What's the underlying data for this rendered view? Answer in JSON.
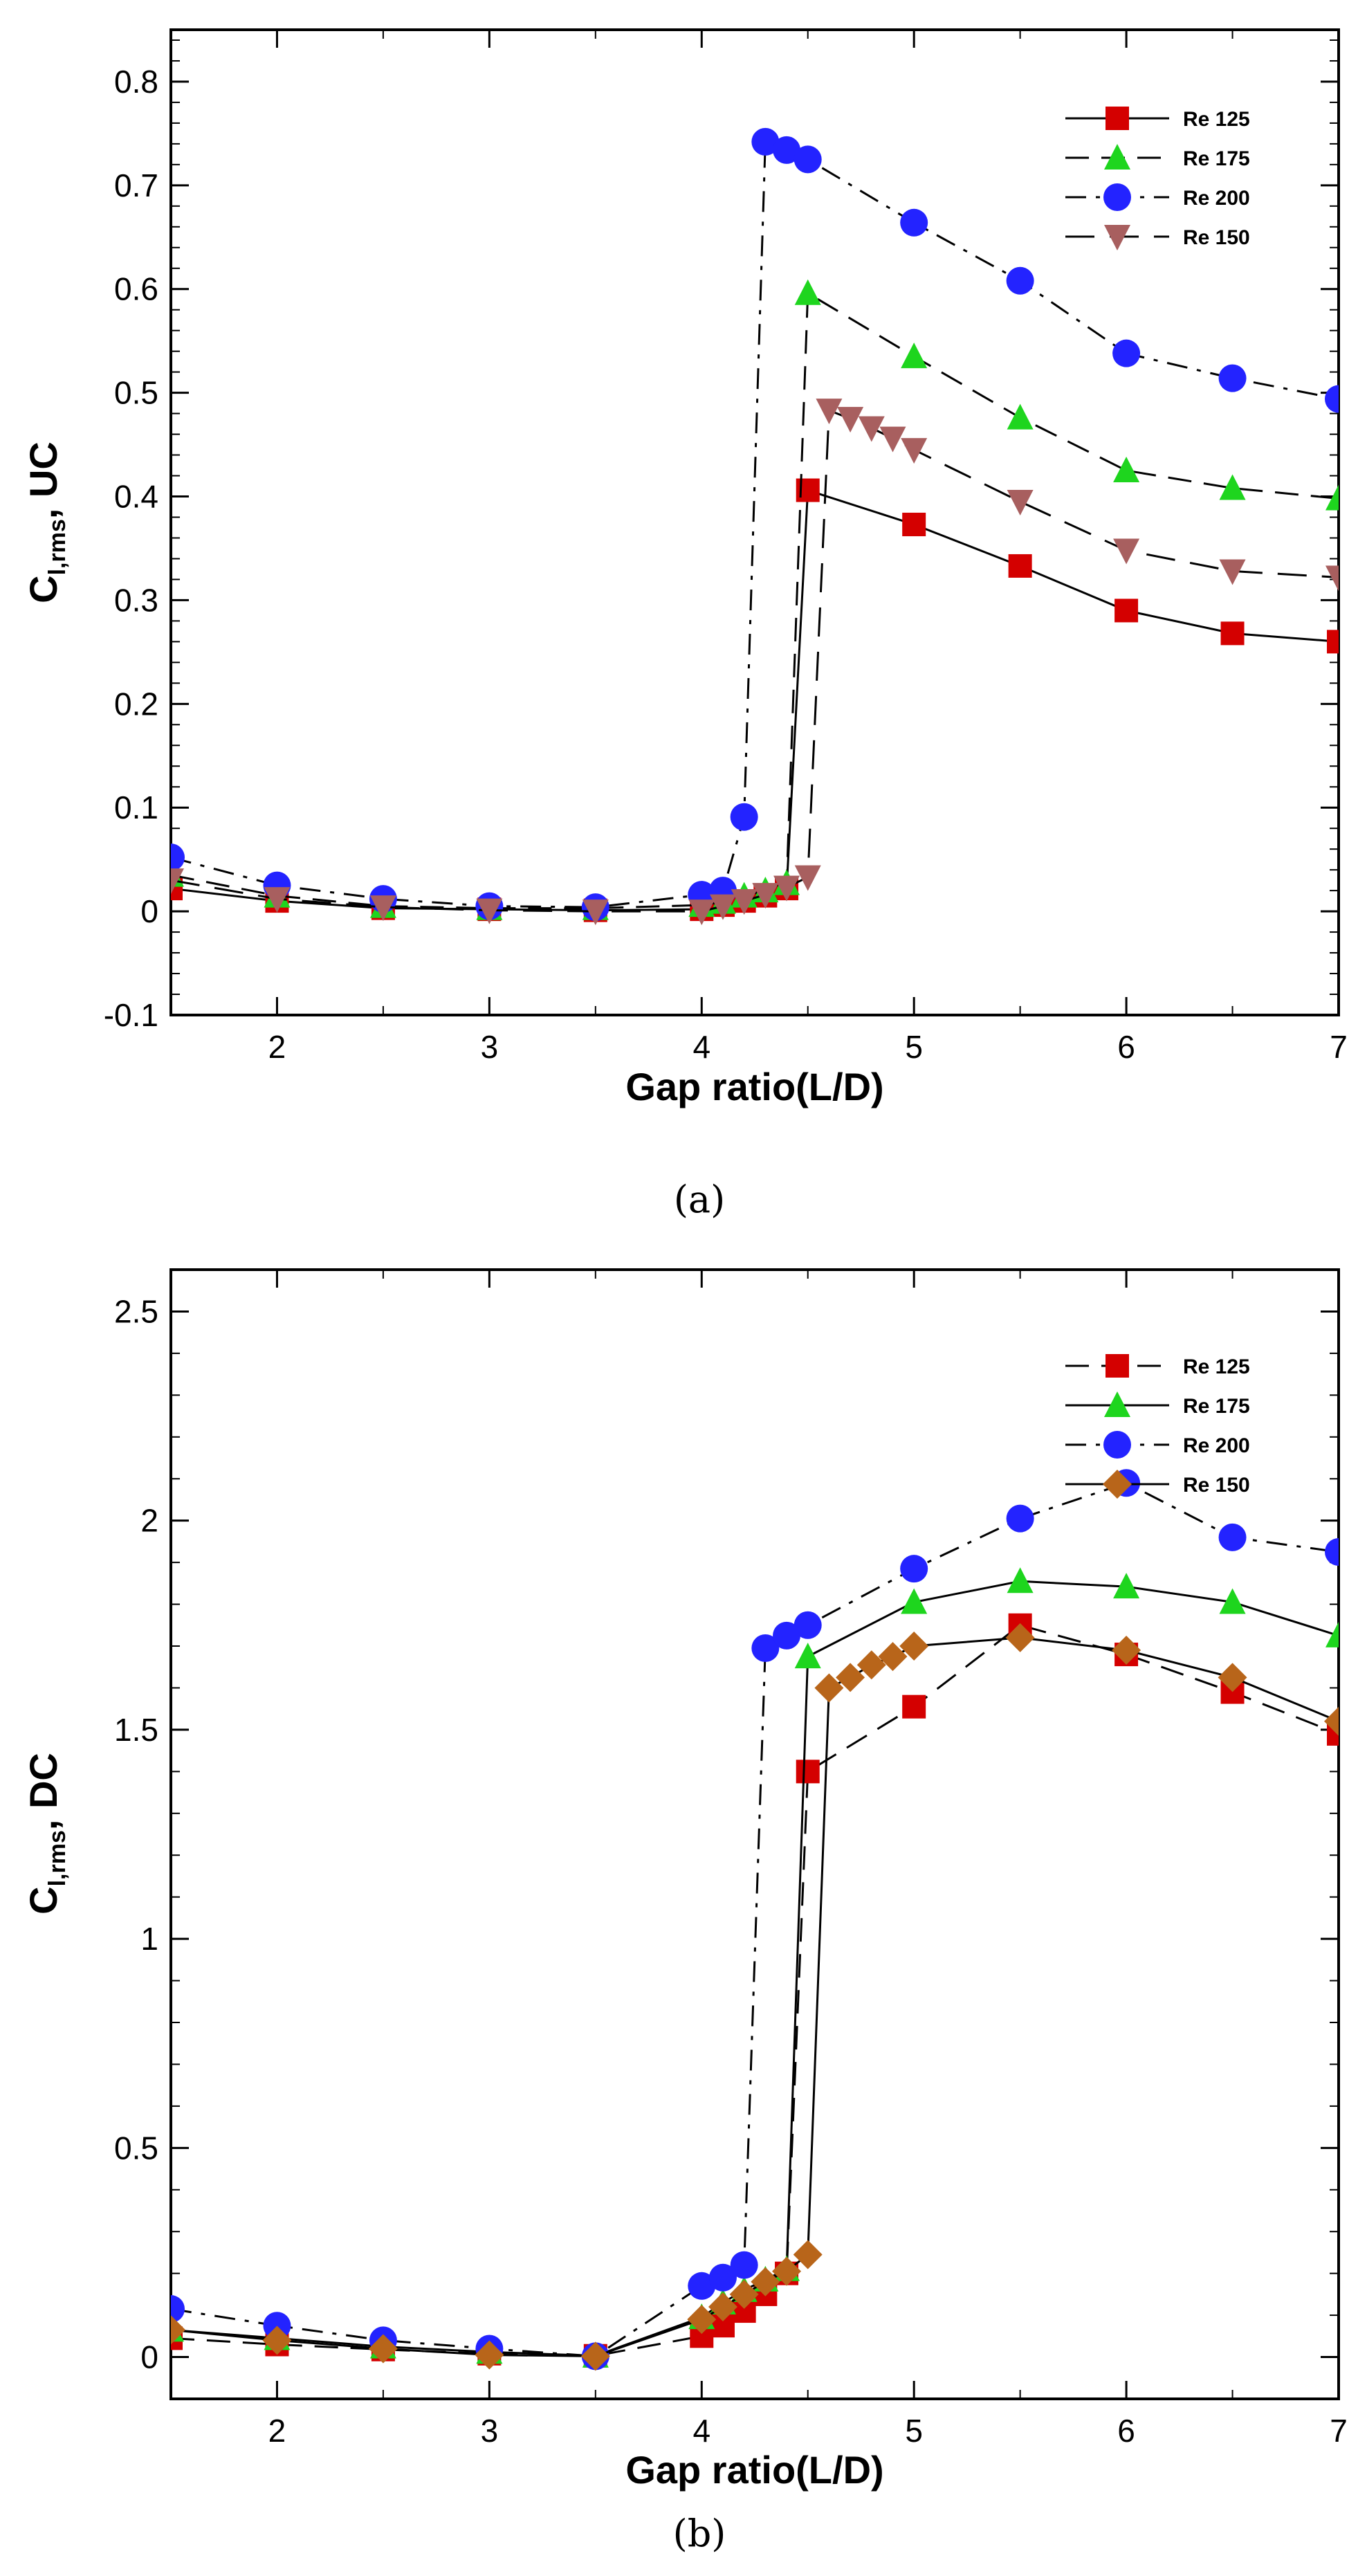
{
  "chart_data": [
    {
      "type": "line",
      "panel_label": "(a)",
      "xlabel": "Gap ratio(L/D)",
      "ylabel_main": "C",
      "ylabel_sub": "l,rms",
      "ylabel_tail": ", UC",
      "xlim": [
        1.5,
        7
      ],
      "ylim": [
        -0.1,
        0.85
      ],
      "xticks": [
        2,
        3,
        4,
        5,
        6,
        7
      ],
      "yticks": [
        -0.1,
        0,
        0.1,
        0.2,
        0.3,
        0.4,
        0.5,
        0.6,
        0.7,
        0.8
      ],
      "xtick_labels": [
        "2",
        "3",
        "4",
        "5",
        "6",
        "7"
      ],
      "ytick_labels": [
        "-0.1",
        "0",
        "0.1",
        "0.2",
        "0.3",
        "0.4",
        "0.5",
        "0.6",
        "0.7",
        "0.8"
      ],
      "grid": false,
      "legend_position": "top-right",
      "series": [
        {
          "name": "Re 125",
          "color": "#d40000",
          "marker": "square",
          "line_style": "solid",
          "x": [
            1.5,
            2,
            2.5,
            3,
            3.5,
            4,
            4.1,
            4.2,
            4.3,
            4.4,
            4.5,
            5,
            5.5,
            6,
            6.5,
            7
          ],
          "y": [
            0.022,
            0.01,
            0.003,
            0.002,
            0.001,
            0.002,
            0.006,
            0.01,
            0.015,
            0.022,
            0.406,
            0.373,
            0.333,
            0.29,
            0.268,
            0.26
          ]
        },
        {
          "name": "Re 175",
          "color": "#1ed51e",
          "marker": "triangle-up",
          "line_style": "dashed",
          "x": [
            1.5,
            2,
            2.5,
            3,
            3.5,
            4,
            4.1,
            4.2,
            4.3,
            4.4,
            4.5,
            5,
            5.5,
            6,
            6.5,
            7
          ],
          "y": [
            0.035,
            0.015,
            0.005,
            0.003,
            0.003,
            0.006,
            0.009,
            0.015,
            0.02,
            0.027,
            0.596,
            0.535,
            0.476,
            0.425,
            0.408,
            0.398
          ]
        },
        {
          "name": "Re 200",
          "color": "#2323ff",
          "marker": "circle",
          "line_style": "dashdot",
          "x": [
            1.5,
            2,
            2.5,
            3,
            3.5,
            4,
            4.1,
            4.2,
            4.3,
            4.4,
            4.5,
            5,
            5.5,
            6,
            6.5,
            7
          ],
          "y": [
            0.052,
            0.025,
            0.012,
            0.005,
            0.004,
            0.016,
            0.02,
            0.091,
            0.742,
            0.734,
            0.725,
            0.664,
            0.608,
            0.538,
            0.514,
            0.494
          ]
        },
        {
          "name": "Re 150",
          "color": "#a85f5f",
          "marker": "triangle-down",
          "line_style": "longdash",
          "x": [
            1.5,
            2,
            2.5,
            3,
            3.5,
            4,
            4.1,
            4.2,
            4.3,
            4.4,
            4.5,
            4.6,
            4.7,
            4.8,
            4.9,
            5,
            5.5,
            6,
            6.5,
            7
          ],
          "y": [
            0.03,
            0.012,
            0.004,
            0.001,
            0.0,
            0.0,
            0.005,
            0.01,
            0.016,
            0.023,
            0.033,
            0.483,
            0.475,
            0.466,
            0.456,
            0.445,
            0.395,
            0.348,
            0.328,
            0.322
          ]
        }
      ]
    },
    {
      "type": "line",
      "panel_label": "(b)",
      "xlabel": "Gap ratio(L/D)",
      "ylabel_main": "C",
      "ylabel_sub": "l,rms",
      "ylabel_tail": ", DC",
      "xlim": [
        1.5,
        7
      ],
      "ylim": [
        -0.1,
        2.6
      ],
      "xticks": [
        2,
        3,
        4,
        5,
        6,
        7
      ],
      "yticks": [
        0,
        0.5,
        1,
        1.5,
        2,
        2.5
      ],
      "xtick_labels": [
        "2",
        "3",
        "4",
        "5",
        "6",
        "7"
      ],
      "ytick_labels": [
        "0",
        "0.5",
        "1",
        "1.5",
        "2",
        "2.5"
      ],
      "grid": false,
      "legend_position": "top-right",
      "series": [
        {
          "name": "Re 125",
          "color": "#d40000",
          "marker": "square",
          "line_style": "dashed",
          "x": [
            1.5,
            2,
            2.5,
            3,
            3.5,
            4,
            4.1,
            4.2,
            4.3,
            4.4,
            4.5,
            5,
            5.5,
            6,
            6.5,
            7
          ],
          "y": [
            0.045,
            0.03,
            0.018,
            0.008,
            0.003,
            0.05,
            0.075,
            0.11,
            0.15,
            0.2,
            1.4,
            1.555,
            1.75,
            1.68,
            1.59,
            1.49
          ]
        },
        {
          "name": "Re 175",
          "color": "#1ed51e",
          "marker": "triangle-up",
          "line_style": "solid",
          "x": [
            1.5,
            2,
            2.5,
            3,
            3.5,
            4,
            4.1,
            4.2,
            4.3,
            4.4,
            4.5,
            5,
            5.5,
            6,
            6.5,
            7
          ],
          "y": [
            0.065,
            0.045,
            0.025,
            0.012,
            0.003,
            0.095,
            0.13,
            0.16,
            0.185,
            0.21,
            1.675,
            1.805,
            1.855,
            1.842,
            1.805,
            1.725
          ]
        },
        {
          "name": "Re 200",
          "color": "#2323ff",
          "marker": "circle",
          "line_style": "dashdot",
          "x": [
            1.5,
            2,
            2.5,
            3,
            3.5,
            4,
            4.1,
            4.2,
            4.3,
            4.4,
            4.5,
            5,
            5.5,
            6,
            6.5,
            7
          ],
          "y": [
            0.115,
            0.075,
            0.04,
            0.02,
            0.002,
            0.17,
            0.19,
            0.22,
            1.695,
            1.725,
            1.75,
            1.885,
            2.005,
            2.09,
            1.96,
            1.925
          ]
        },
        {
          "name": "Re 150",
          "color": "#b8651a",
          "marker": "diamond",
          "line_style": "solid",
          "x": [
            1.5,
            2,
            2.5,
            3,
            3.5,
            4,
            4.1,
            4.2,
            4.3,
            4.4,
            4.5,
            4.6,
            4.7,
            4.8,
            4.9,
            5,
            5.5,
            6,
            6.5,
            7
          ],
          "y": [
            0.065,
            0.04,
            0.02,
            0.005,
            0.002,
            0.09,
            0.12,
            0.15,
            0.18,
            0.205,
            0.245,
            1.6,
            1.625,
            1.655,
            1.675,
            1.7,
            1.72,
            1.69,
            1.625,
            1.52
          ]
        }
      ]
    }
  ]
}
